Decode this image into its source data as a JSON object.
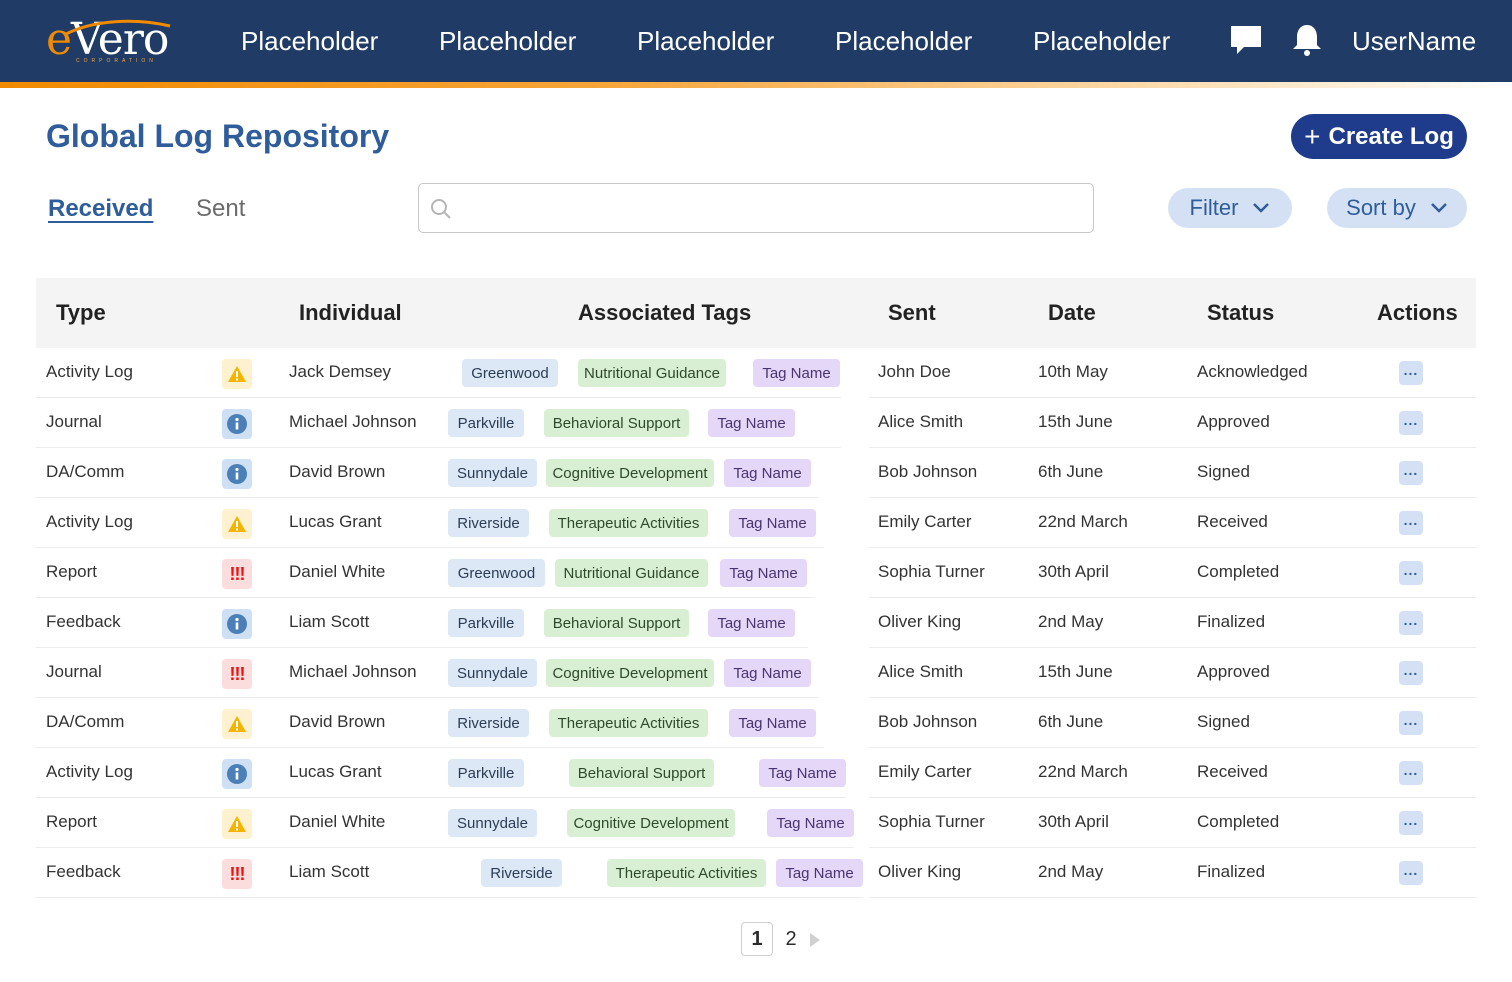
{
  "brand": {
    "logo_text": "eVero",
    "logo_sub": "CORPORATION"
  },
  "nav": {
    "items": [
      {
        "label": "Placeholder"
      },
      {
        "label": "Placeholder"
      },
      {
        "label": "Placeholder"
      },
      {
        "label": "Placeholder"
      },
      {
        "label": "Placeholder"
      }
    ],
    "username": "UserName",
    "icons": [
      "chat-icon",
      "bell-icon"
    ]
  },
  "page": {
    "title": "Global Log Repository",
    "create_label": "Create Log",
    "tabs": [
      {
        "label": "Received",
        "active": true
      },
      {
        "label": "Sent",
        "active": false
      }
    ],
    "search": {
      "placeholder": "",
      "value": ""
    },
    "filter_label": "Filter",
    "sort_label": "Sort by"
  },
  "table": {
    "columns": [
      "Type",
      "Individual",
      "Associated Tags",
      "Sent",
      "Date",
      "Status",
      "Actions"
    ],
    "rows": [
      {
        "type": "Activity Log",
        "icon": "warning",
        "individual": "Jack Demsey",
        "tags": [
          "Greenwood",
          "Nutritional Guidance",
          "Tag Name"
        ],
        "sent": "John Doe",
        "date": "10th May",
        "status": "Acknowledged"
      },
      {
        "type": "Journal",
        "icon": "info",
        "individual": "Michael Johnson",
        "tags": [
          "Parkville",
          "Behavioral Support",
          "Tag Name"
        ],
        "sent": "Alice Smith",
        "date": "15th June",
        "status": "Approved"
      },
      {
        "type": "DA/Comm",
        "icon": "info",
        "individual": "David Brown",
        "tags": [
          "Sunnydale",
          "Cognitive Development",
          "Tag Name"
        ],
        "sent": "Bob Johnson",
        "date": "6th June",
        "status": "Signed"
      },
      {
        "type": "Activity Log",
        "icon": "warning",
        "individual": "Lucas Grant",
        "tags": [
          "Riverside",
          "Therapeutic Activities",
          "Tag Name"
        ],
        "sent": "Emily Carter",
        "date": "22nd March",
        "status": "Received"
      },
      {
        "type": "Report",
        "icon": "critical",
        "individual": "Daniel White",
        "tags": [
          "Greenwood",
          "Nutritional Guidance",
          "Tag Name"
        ],
        "sent": "Sophia Turner",
        "date": "30th April",
        "status": "Completed"
      },
      {
        "type": "Feedback",
        "icon": "info",
        "individual": "Liam Scott",
        "tags": [
          "Parkville",
          "Behavioral Support",
          "Tag Name"
        ],
        "sent": "Oliver King",
        "date": "2nd May",
        "status": "Finalized"
      },
      {
        "type": "Journal",
        "icon": "critical",
        "individual": "Michael Johnson",
        "tags": [
          "Sunnydale",
          "Cognitive Development",
          "Tag Name"
        ],
        "sent": "Alice Smith",
        "date": "15th June",
        "status": "Approved"
      },
      {
        "type": "DA/Comm",
        "icon": "warning",
        "individual": "David Brown",
        "tags": [
          "Riverside",
          "Therapeutic Activities",
          "Tag Name"
        ],
        "sent": "Bob Johnson",
        "date": "6th June",
        "status": "Signed"
      },
      {
        "type": "Activity Log",
        "icon": "info",
        "individual": "Lucas Grant",
        "tags": [
          "Parkville",
          "Behavioral Support",
          "Tag Name"
        ],
        "sent": "Emily Carter",
        "date": "22nd March",
        "status": "Received"
      },
      {
        "type": "Report",
        "icon": "warning",
        "individual": "Daniel White",
        "tags": [
          "Sunnydale",
          "Cognitive Development",
          "Tag Name"
        ],
        "sent": "Sophia Turner",
        "date": "30th April",
        "status": "Completed"
      },
      {
        "type": "Feedback",
        "icon": "critical",
        "individual": "Liam Scott",
        "tags": [
          "Riverside",
          "Therapeutic Activities",
          "Tag Name"
        ],
        "sent": "Oliver King",
        "date": "2nd May",
        "status": "Finalized"
      }
    ],
    "critical_glyph": "!!!"
  },
  "pagination": {
    "pages": [
      "1",
      "2"
    ],
    "current": "1"
  },
  "colors": {
    "nav_bg": "#1f3b66",
    "accent_orange": "#f08a00",
    "title_blue": "#2f5d9b",
    "primary_button": "#1f3b8c",
    "tag_location": "#dde8f6",
    "tag_category": "#d8efd3",
    "tag_name": "#e4d7f7"
  }
}
